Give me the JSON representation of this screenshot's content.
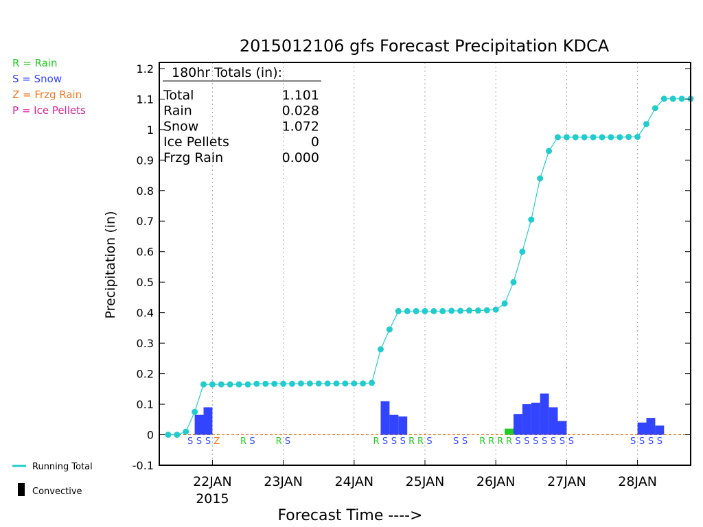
{
  "colors": {
    "rain": "#22cc22",
    "snow": "#3344ff",
    "frzg_rain": "#ee7722",
    "ice_pellets": "#dd2299",
    "running_total": "#22cccc",
    "zero_line": "#dd6600",
    "grid": "#aaaaaa",
    "convective": "#000000"
  },
  "side_legend": {
    "rain": "R = Rain",
    "snow": "S = Snow",
    "frzg_rain": "Z = Frzg Rain",
    "ice_pellets": "P = Ice Pellets",
    "running_total": "Running Total",
    "convective": "Convective"
  },
  "totals_box": {
    "header": "180hr Totals (in):",
    "rows": [
      {
        "label": "Total",
        "value": "1.101"
      },
      {
        "label": "Rain",
        "value": "0.028"
      },
      {
        "label": "Snow",
        "value": "1.072"
      },
      {
        "label": "Ice Pellets",
        "value": "0"
      },
      {
        "label": "Frzg Rain",
        "value": "0.000"
      }
    ]
  },
  "chart_data": {
    "type": "bar",
    "title": "2015012106 gfs Forecast Precipitation KDCA",
    "xlabel": "Forecast Time ---->",
    "ylabel": "Precipitation (in)",
    "ylim": [
      -0.1,
      1.22
    ],
    "yticks": [
      -0.1,
      0,
      0.1,
      0.2,
      0.3,
      0.4,
      0.5,
      0.6,
      0.7,
      0.8,
      0.9,
      1,
      1.1,
      1.2
    ],
    "ytick_labels": [
      "-0.1",
      "0",
      "0.1",
      "0.2",
      "0.3",
      "0.4",
      "0.5",
      "0.6",
      "0.7",
      "0.8",
      "0.9",
      "1",
      "1.1",
      "1.2"
    ],
    "x_hours_range": [
      0,
      180
    ],
    "xticks": [
      {
        "hour": 18,
        "label": "22JAN",
        "sublabel": "2015"
      },
      {
        "hour": 42,
        "label": "23JAN",
        "sublabel": ""
      },
      {
        "hour": 66,
        "label": "24JAN",
        "sublabel": ""
      },
      {
        "hour": 90,
        "label": "25JAN",
        "sublabel": ""
      },
      {
        "hour": 114,
        "label": "26JAN",
        "sublabel": ""
      },
      {
        "hour": 138,
        "label": "27JAN",
        "sublabel": ""
      },
      {
        "hour": 162,
        "label": "28JAN",
        "sublabel": ""
      }
    ],
    "grid": true,
    "running_total": {
      "name": "Running Total",
      "hours": [
        3,
        6,
        9,
        12,
        15,
        18,
        21,
        24,
        27,
        30,
        33,
        36,
        39,
        42,
        45,
        48,
        51,
        54,
        57,
        60,
        63,
        66,
        69,
        72,
        75,
        78,
        81,
        84,
        87,
        90,
        93,
        96,
        99,
        102,
        105,
        108,
        111,
        114,
        117,
        120,
        123,
        126,
        129,
        132,
        135,
        138,
        141,
        144,
        147,
        150,
        153,
        156,
        159,
        162,
        165,
        168,
        171,
        174,
        177,
        180
      ],
      "values": [
        0.0,
        0.0,
        0.01,
        0.075,
        0.165,
        0.165,
        0.165,
        0.165,
        0.165,
        0.165,
        0.167,
        0.167,
        0.167,
        0.167,
        0.167,
        0.168,
        0.168,
        0.168,
        0.168,
        0.168,
        0.168,
        0.168,
        0.168,
        0.17,
        0.28,
        0.345,
        0.405,
        0.405,
        0.405,
        0.405,
        0.405,
        0.405,
        0.406,
        0.406,
        0.407,
        0.407,
        0.408,
        0.41,
        0.43,
        0.5,
        0.6,
        0.705,
        0.84,
        0.93,
        0.975,
        0.975,
        0.975,
        0.975,
        0.975,
        0.975,
        0.975,
        0.975,
        0.976,
        0.976,
        1.018,
        1.07,
        1.101,
        1.101,
        1.101,
        1.101
      ]
    },
    "bars": [
      {
        "start_hour": 12,
        "end_hour": 15,
        "value": 0.065,
        "type": "snow"
      },
      {
        "start_hour": 15,
        "end_hour": 18,
        "value": 0.09,
        "type": "snow"
      },
      {
        "start_hour": 75,
        "end_hour": 78,
        "value": 0.11,
        "type": "snow"
      },
      {
        "start_hour": 78,
        "end_hour": 81,
        "value": 0.065,
        "type": "snow"
      },
      {
        "start_hour": 81,
        "end_hour": 84,
        "value": 0.06,
        "type": "snow"
      },
      {
        "start_hour": 117,
        "end_hour": 120,
        "value": 0.02,
        "type": "rain"
      },
      {
        "start_hour": 120,
        "end_hour": 123,
        "value": 0.068,
        "type": "snow"
      },
      {
        "start_hour": 123,
        "end_hour": 126,
        "value": 0.1,
        "type": "snow"
      },
      {
        "start_hour": 126,
        "end_hour": 129,
        "value": 0.105,
        "type": "snow"
      },
      {
        "start_hour": 129,
        "end_hour": 132,
        "value": 0.135,
        "type": "snow"
      },
      {
        "start_hour": 132,
        "end_hour": 135,
        "value": 0.09,
        "type": "snow"
      },
      {
        "start_hour": 135,
        "end_hour": 138,
        "value": 0.045,
        "type": "snow"
      },
      {
        "start_hour": 162,
        "end_hour": 165,
        "value": 0.04,
        "type": "snow"
      },
      {
        "start_hour": 165,
        "end_hour": 168,
        "value": 0.055,
        "type": "snow"
      },
      {
        "start_hour": 168,
        "end_hour": 171,
        "value": 0.03,
        "type": "snow"
      }
    ],
    "precip_type_labels": [
      {
        "hour": 10.5,
        "text": "S",
        "type": "snow"
      },
      {
        "hour": 13.5,
        "text": "S",
        "type": "snow"
      },
      {
        "hour": 16.5,
        "text": "S",
        "type": "snow"
      },
      {
        "hour": 19.5,
        "text": "Z",
        "type": "frzg_rain"
      },
      {
        "hour": 28.5,
        "text": "R",
        "type": "rain"
      },
      {
        "hour": 31.5,
        "text": "S",
        "type": "snow"
      },
      {
        "hour": 40.5,
        "text": "R",
        "type": "rain"
      },
      {
        "hour": 43.5,
        "text": "S",
        "type": "snow"
      },
      {
        "hour": 73.5,
        "text": "R",
        "type": "rain"
      },
      {
        "hour": 76.5,
        "text": "S",
        "type": "snow"
      },
      {
        "hour": 79.5,
        "text": "S",
        "type": "snow"
      },
      {
        "hour": 82.5,
        "text": "S",
        "type": "snow"
      },
      {
        "hour": 85.5,
        "text": "R",
        "type": "rain"
      },
      {
        "hour": 88.5,
        "text": "R",
        "type": "rain"
      },
      {
        "hour": 91.5,
        "text": "S",
        "type": "snow"
      },
      {
        "hour": 100.5,
        "text": "S",
        "type": "snow"
      },
      {
        "hour": 103.5,
        "text": "S",
        "type": "snow"
      },
      {
        "hour": 109.5,
        "text": "R",
        "type": "rain"
      },
      {
        "hour": 112.5,
        "text": "R",
        "type": "rain"
      },
      {
        "hour": 115.5,
        "text": "R",
        "type": "rain"
      },
      {
        "hour": 118.5,
        "text": "R",
        "type": "rain"
      },
      {
        "hour": 121.5,
        "text": "S",
        "type": "snow"
      },
      {
        "hour": 124.5,
        "text": "S",
        "type": "snow"
      },
      {
        "hour": 127.5,
        "text": "S",
        "type": "snow"
      },
      {
        "hour": 130.5,
        "text": "S",
        "type": "snow"
      },
      {
        "hour": 133.5,
        "text": "S",
        "type": "snow"
      },
      {
        "hour": 136.5,
        "text": "S",
        "type": "snow"
      },
      {
        "hour": 139.5,
        "text": "S",
        "type": "snow"
      },
      {
        "hour": 160.5,
        "text": "S",
        "type": "snow"
      },
      {
        "hour": 163.5,
        "text": "S",
        "type": "snow"
      },
      {
        "hour": 166.5,
        "text": "S",
        "type": "snow"
      },
      {
        "hour": 169.5,
        "text": "S",
        "type": "snow"
      }
    ]
  }
}
